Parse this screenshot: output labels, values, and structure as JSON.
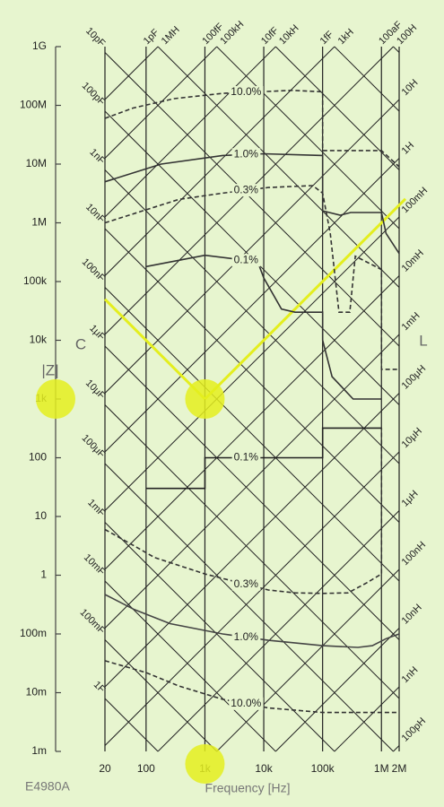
{
  "chart_data": {
    "type": "line",
    "x_label": "Frequency [Hz]",
    "y_label": "|Z|",
    "caption": "E4980A",
    "left_side_label": "C",
    "right_side_label": "L",
    "log_x": true,
    "log_y": true,
    "xlim": [
      20,
      2000000
    ],
    "xticks": [
      20,
      100,
      {
        "value": 1000,
        "label": "1k"
      },
      {
        "value": 10000,
        "label": "10k"
      },
      {
        "value": 100000,
        "label": "100k"
      },
      {
        "value": 1000000,
        "label": "1M"
      },
      {
        "value": 2000000,
        "label": "2M"
      }
    ],
    "ylim": [
      0.001,
      1000000000
    ],
    "yticks": [
      {
        "value": 0.001,
        "label": "1m"
      },
      {
        "value": 0.01,
        "label": "10m"
      },
      {
        "value": 0.1,
        "label": "100m"
      },
      1,
      10,
      100,
      {
        "value": 1000,
        "label": "1k"
      },
      {
        "value": 10000,
        "label": "10k"
      },
      {
        "value": 100000,
        "label": "100k"
      },
      {
        "value": 1000000,
        "label": "1M"
      },
      {
        "value": 10000000,
        "label": "10M"
      },
      {
        "value": 100000000,
        "label": "100M"
      },
      {
        "value": 1000000000,
        "label": "1G"
      }
    ],
    "grid": true,
    "capacitance_lines": [
      {
        "value": 1e-16,
        "label": "100aF"
      },
      {
        "value": 1e-15,
        "label": "1fF"
      },
      {
        "value": 1e-14,
        "label": "10fF"
      },
      {
        "value": 1e-13,
        "label": "100fF"
      },
      {
        "value": 1e-12,
        "label": "1pF"
      },
      {
        "value": 1e-11,
        "label": "10pF"
      },
      {
        "value": 1e-10,
        "label": "100pF"
      },
      {
        "value": 1e-09,
        "label": "1nF"
      },
      {
        "value": 1e-08,
        "label": "10nF"
      },
      {
        "value": 1e-07,
        "label": "100nF"
      },
      {
        "value": 1e-06,
        "label": "1μF"
      },
      {
        "value": 1e-05,
        "label": "10μF"
      },
      {
        "value": 0.0001,
        "label": "100μF"
      },
      {
        "value": 0.001,
        "label": "1mF"
      },
      {
        "value": 0.01,
        "label": "10mF"
      },
      {
        "value": 0.1,
        "label": "100mF"
      },
      {
        "value": 1,
        "label": "1F"
      }
    ],
    "inductance_lines": [
      {
        "value": 1e-10,
        "label": "100pH"
      },
      {
        "value": 1e-09,
        "label": "1nH"
      },
      {
        "value": 1e-08,
        "label": "10nH"
      },
      {
        "value": 1e-07,
        "label": "100nH"
      },
      {
        "value": 1e-06,
        "label": "1μH"
      },
      {
        "value": 1e-05,
        "label": "10μH"
      },
      {
        "value": 0.0001,
        "label": "100μH"
      },
      {
        "value": 0.001,
        "label": "1mH"
      },
      {
        "value": 0.01,
        "label": "10mH"
      },
      {
        "value": 0.1,
        "label": "100mH"
      },
      {
        "value": 1,
        "label": "1H"
      },
      {
        "value": 10,
        "label": "10H"
      },
      {
        "value": 100,
        "label": "100H"
      },
      {
        "value": 1000,
        "label": "1kH"
      },
      {
        "value": 10000,
        "label": "10kH"
      },
      {
        "value": 100000,
        "label": "100kH"
      },
      {
        "value": 1000000,
        "label": "1MH"
      }
    ],
    "highlight": {
      "frequency": 1000,
      "impedance": 1000,
      "color": "#e4ee1e"
    },
    "series": [
      {
        "name": "10.0%",
        "color": "#333333",
        "dashed": true,
        "x": [
          20,
          60,
          300,
          2000,
          30000,
          100000,
          100000,
          1000000,
          2000000
        ],
        "values": [
          60000000,
          90000000,
          130000000,
          160000000,
          180000000,
          170000000,
          17000000,
          17000000,
          9000000
        ]
      },
      {
        "name": "1.0%",
        "color": "#333333",
        "dashed": false,
        "x": [
          20,
          180,
          2000,
          10000,
          100000,
          100000,
          200000,
          300000,
          1000000,
          1200000,
          2000000
        ],
        "values": [
          5000000,
          10000000,
          14000000,
          15000000,
          14000000,
          1600000,
          1350000,
          1500000,
          1500000,
          660000,
          300000
        ]
      },
      {
        "name": "0.3%",
        "color": "#333333",
        "dashed": true,
        "x": [
          20,
          360,
          2000,
          12000,
          68000,
          100000,
          135000,
          190000,
          290000,
          360000,
          1000000,
          1000000,
          2000000
        ],
        "values": [
          1000000,
          2500000,
          3200000,
          4000000,
          4300000,
          3200000,
          660000,
          30000,
          30000,
          270000,
          160000,
          3200,
          3200
        ]
      },
      {
        "name": "0.1%",
        "color": "#333333",
        "dashed": false,
        "x": [
          100,
          1000,
          5000,
          8300,
          10000,
          20000,
          34000,
          100000,
          100000,
          145000,
          330000,
          1000000
        ],
        "values": [
          180000,
          280000,
          230000,
          190000,
          115000,
          34000,
          30000,
          30000,
          10000,
          2400,
          1000,
          1000
        ]
      },
      {
        "name": "0.1%",
        "color": "#222222",
        "dashed": false,
        "x": [
          100,
          1000,
          1000,
          100000,
          100000,
          1000000
        ],
        "values": [
          30,
          30,
          100,
          100,
          320,
          320
        ]
      },
      {
        "name": "0.3%",
        "color": "#333333",
        "dashed": true,
        "x": [
          20,
          50,
          140,
          1000,
          12000,
          34000,
          100000,
          270000,
          560000,
          1000000,
          1000000
        ],
        "values": [
          6,
          3.6,
          2,
          1.05,
          0.56,
          0.5,
          0.49,
          0.5,
          0.74,
          1.05,
          320
        ]
      },
      {
        "name": "1.0%",
        "color": "#444444",
        "dashed": false,
        "x": [
          20,
          63,
          256,
          2000,
          12000,
          100000,
          400000,
          700000,
          1200000,
          2000000
        ],
        "values": [
          0.47,
          0.26,
          0.15,
          0.1,
          0.078,
          0.063,
          0.059,
          0.063,
          0.083,
          0.1
        ]
      },
      {
        "name": "10.0%",
        "color": "#333333",
        "dashed": true,
        "x": [
          20,
          100,
          360,
          2000,
          12000,
          100000,
          2000000
        ],
        "values": [
          0.035,
          0.022,
          0.013,
          0.0077,
          0.0055,
          0.0046,
          0.0046
        ]
      }
    ]
  }
}
